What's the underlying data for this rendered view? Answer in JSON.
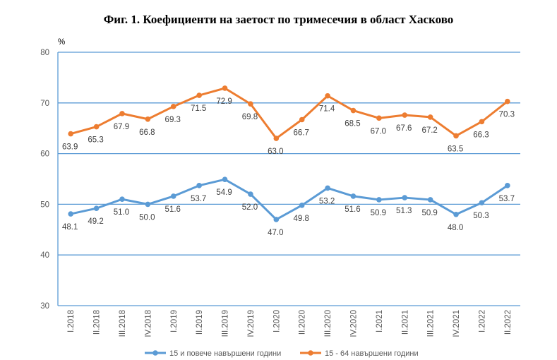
{
  "chart_data": {
    "type": "line",
    "title": "Фиг. 1. Коефициенти на заетост по тримесечия в област Хасково",
    "ylabel": "%",
    "ylim": [
      30,
      80
    ],
    "yticks": [
      30,
      40,
      50,
      60,
      70,
      80
    ],
    "grid": true,
    "legend_position": "bottom",
    "categories": [
      "I.2018",
      "II.2018",
      "III.2018",
      "IV.2018",
      "I.2019",
      "II.2019",
      "III.2019",
      "IV.2019",
      "I.2020",
      "II.2020",
      "III.2020",
      "IV.2020",
      "I.2021",
      "II.2021",
      "III.2021",
      "IV.2021",
      "I.2022",
      "II.2022"
    ],
    "series": [
      {
        "name": "15 и повече навършени години",
        "color": "#5B9BD5",
        "values": [
          48.1,
          49.2,
          51.0,
          50.0,
          51.6,
          53.7,
          54.9,
          52.0,
          47.0,
          49.8,
          53.2,
          51.6,
          50.9,
          51.3,
          50.9,
          48.0,
          50.3,
          53.7
        ]
      },
      {
        "name": "15 - 64 навършени години",
        "color": "#ED7D31",
        "values": [
          63.9,
          65.3,
          67.9,
          66.8,
          69.3,
          71.5,
          72.9,
          69.8,
          63.0,
          66.7,
          71.4,
          68.5,
          67.0,
          67.6,
          67.2,
          63.5,
          66.3,
          70.3
        ]
      }
    ]
  }
}
